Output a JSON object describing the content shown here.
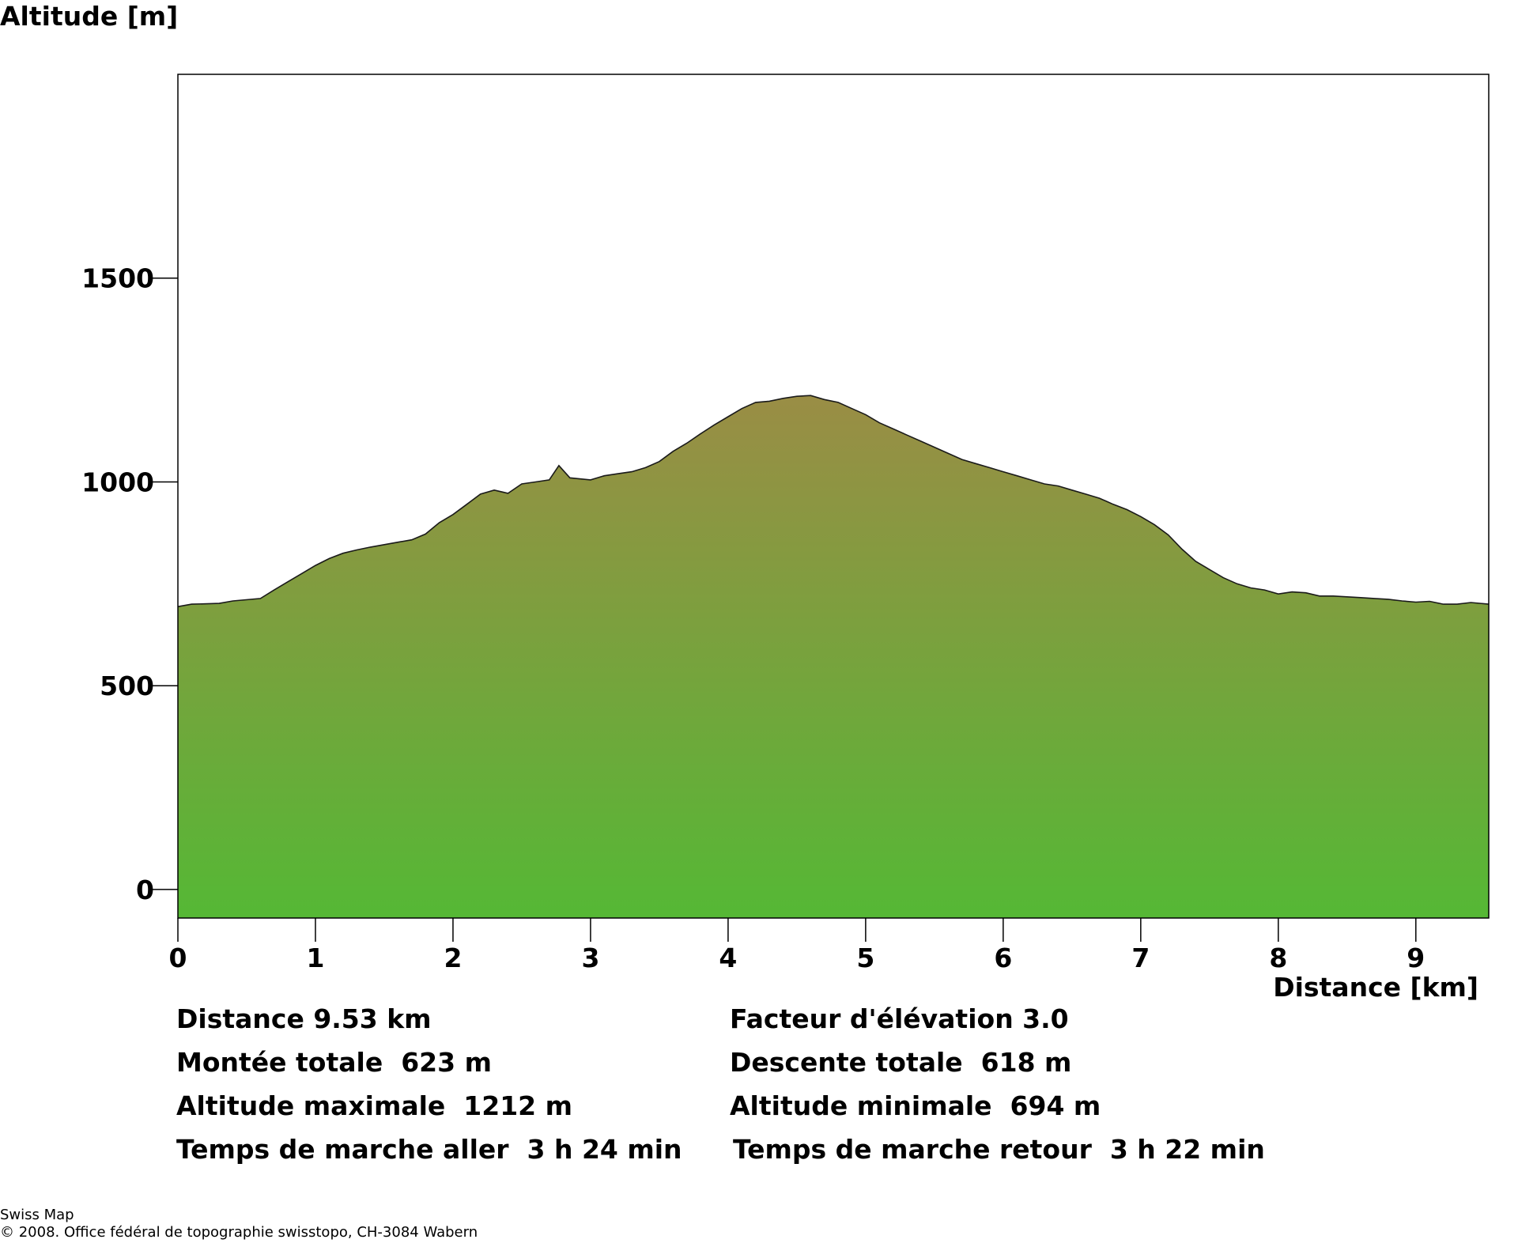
{
  "chart_data": {
    "type": "area",
    "title": "",
    "ylabel": "Altitude [m]",
    "xlabel": "Distance [km]",
    "xlim": [
      0,
      9.53
    ],
    "ylim": [
      -70,
      2000
    ],
    "x_ticks": [
      "0",
      "1",
      "2",
      "3",
      "4",
      "5",
      "6",
      "7",
      "8",
      "9"
    ],
    "y_ticks": [
      "0",
      "500",
      "1000",
      "1500"
    ],
    "grid": false,
    "fill_colors": {
      "top": "#9a8d45",
      "bottom": "#55b835"
    },
    "x": [
      0,
      0.1,
      0.3,
      0.4,
      0.6,
      0.7,
      0.8,
      0.9,
      1.0,
      1.1,
      1.2,
      1.3,
      1.4,
      1.5,
      1.6,
      1.7,
      1.8,
      1.9,
      2.0,
      2.1,
      2.2,
      2.3,
      2.4,
      2.5,
      2.6,
      2.7,
      2.77,
      2.85,
      3.0,
      3.1,
      3.2,
      3.3,
      3.4,
      3.5,
      3.6,
      3.7,
      3.8,
      3.9,
      4.0,
      4.1,
      4.2,
      4.3,
      4.4,
      4.5,
      4.6,
      4.7,
      4.8,
      4.9,
      5.0,
      5.1,
      5.2,
      5.3,
      5.4,
      5.5,
      5.6,
      5.7,
      5.8,
      5.9,
      6.0,
      6.1,
      6.2,
      6.3,
      6.4,
      6.5,
      6.6,
      6.7,
      6.8,
      6.9,
      7.0,
      7.1,
      7.2,
      7.3,
      7.4,
      7.5,
      7.6,
      7.7,
      7.8,
      7.9,
      8.0,
      8.1,
      8.2,
      8.3,
      8.4,
      8.5,
      8.6,
      8.7,
      8.8,
      8.9,
      9.0,
      9.1,
      9.2,
      9.3,
      9.4,
      9.53
    ],
    "y": [
      694,
      700,
      702,
      708,
      714,
      735,
      755,
      775,
      795,
      812,
      825,
      833,
      840,
      846,
      852,
      858,
      872,
      900,
      920,
      945,
      970,
      980,
      972,
      995,
      1000,
      1005,
      1040,
      1010,
      1005,
      1015,
      1020,
      1025,
      1035,
      1050,
      1075,
      1095,
      1118,
      1140,
      1160,
      1180,
      1195,
      1198,
      1205,
      1210,
      1212,
      1202,
      1195,
      1180,
      1165,
      1145,
      1130,
      1115,
      1100,
      1085,
      1070,
      1055,
      1045,
      1035,
      1025,
      1015,
      1005,
      995,
      990,
      980,
      970,
      960,
      945,
      932,
      915,
      895,
      870,
      835,
      805,
      785,
      765,
      750,
      740,
      735,
      725,
      730,
      728,
      720,
      720,
      718,
      716,
      714,
      712,
      708,
      705,
      707,
      700,
      700,
      704,
      700
    ]
  },
  "stats_left": [
    "Distance 9.53 km",
    "Montée totale  623 m",
    "Altitude maximale  1212 m",
    "Temps de marche aller  3 h 24 min"
  ],
  "stats_right": [
    "Facteur d'élévation 3.0",
    "Descente totale  618 m",
    "Altitude minimale  694 m",
    "Temps de marche retour  3 h 22 min"
  ],
  "credits": {
    "line1": "Swiss Map",
    "line2": "© 2008. Office fédéral de topographie swisstopo, CH-3084 Wabern"
  }
}
